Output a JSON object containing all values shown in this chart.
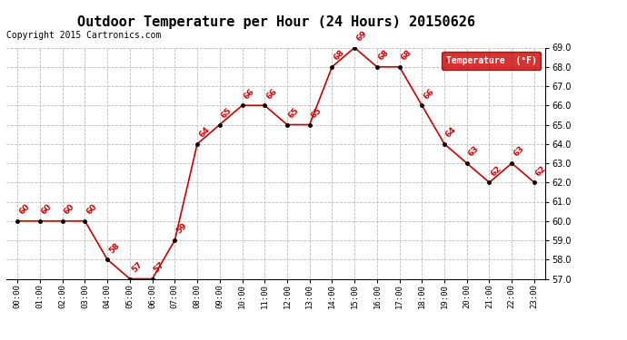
{
  "title": "Outdoor Temperature per Hour (24 Hours) 20150626",
  "copyright": "Copyright 2015 Cartronics.com",
  "legend_label": "Temperature  (°F)",
  "hours": [
    0,
    1,
    2,
    3,
    4,
    5,
    6,
    7,
    8,
    9,
    10,
    11,
    12,
    13,
    14,
    15,
    16,
    17,
    18,
    19,
    20,
    21,
    22,
    23
  ],
  "temps": [
    60,
    60,
    60,
    60,
    58,
    57,
    57,
    59,
    64,
    65,
    66,
    66,
    65,
    65,
    68,
    69,
    68,
    68,
    66,
    64,
    63,
    62,
    63,
    62
  ],
  "ylim": [
    57.0,
    69.0
  ],
  "yticks": [
    57.0,
    58.0,
    59.0,
    60.0,
    61.0,
    62.0,
    63.0,
    64.0,
    65.0,
    66.0,
    67.0,
    68.0,
    69.0
  ],
  "line_color": "#cc0000",
  "marker_color": "#000000",
  "label_color": "#cc0000",
  "grid_color": "#bbbbbb",
  "background_color": "#ffffff",
  "title_fontsize": 11,
  "copyright_fontsize": 7,
  "legend_bg": "#cc0000",
  "legend_text_color": "#ffffff"
}
